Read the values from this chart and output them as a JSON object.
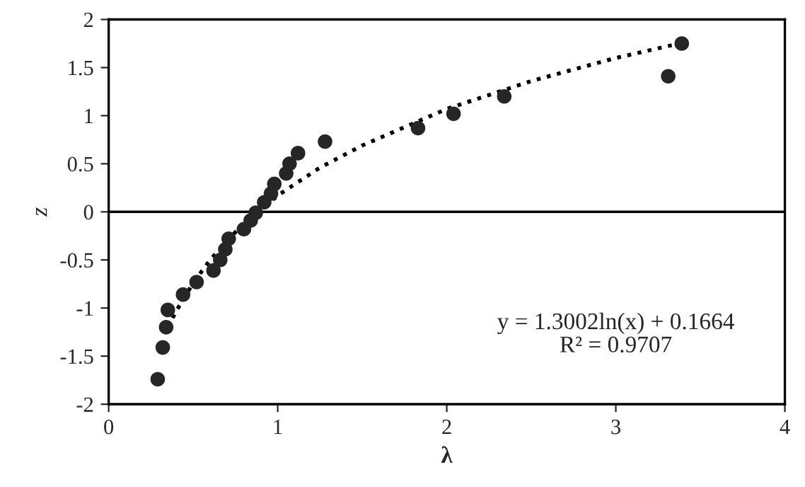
{
  "chart_data": {
    "type": "scatter",
    "xlabel": "λ",
    "ylabel": "z",
    "xlim": [
      0,
      4
    ],
    "xticks": [
      0,
      1,
      2,
      3,
      4
    ],
    "ylim": [
      -2,
      2
    ],
    "yticks": [
      -2,
      -1.5,
      -1,
      -0.5,
      0,
      0.5,
      1,
      1.5,
      2
    ],
    "grid": false,
    "marker": "circle",
    "ref_lines": [
      {
        "axis": "y",
        "value": 0,
        "color": "#000000"
      }
    ],
    "annotations": [
      "y = 1.3002ln(x) + 0.1664\nR² = 0.9707"
    ],
    "series": [
      {
        "color": "#262626",
        "x": [
          0.29,
          0.32,
          0.34,
          0.35,
          0.44,
          0.52,
          0.62,
          0.66,
          0.69,
          0.71,
          0.8,
          0.84,
          0.87,
          0.92,
          0.96,
          0.98,
          1.05,
          1.07,
          1.12,
          1.28,
          1.83,
          2.04,
          2.34,
          3.31,
          3.39
        ],
        "values": [
          -1.74,
          -1.41,
          -1.2,
          -1.02,
          -0.86,
          -0.73,
          -0.61,
          -0.5,
          -0.39,
          -0.28,
          -0.18,
          -0.09,
          -0.01,
          0.1,
          0.19,
          0.29,
          0.4,
          0.5,
          0.61,
          0.73,
          0.87,
          1.02,
          1.2,
          1.41,
          1.75
        ]
      },
      {
        "type": "line",
        "color": "#000000",
        "line_style": "dotted",
        "marker": "none",
        "x": [
          0.35,
          0.4,
          0.5,
          0.6,
          0.75,
          1,
          1.25,
          1.5,
          2,
          2.5,
          3,
          3.4
        ],
        "values": [
          -1.2,
          -1.03,
          -0.74,
          -0.5,
          -0.21,
          0.17,
          0.46,
          0.69,
          1.07,
          1.36,
          1.6,
          1.76
        ]
      }
    ]
  }
}
